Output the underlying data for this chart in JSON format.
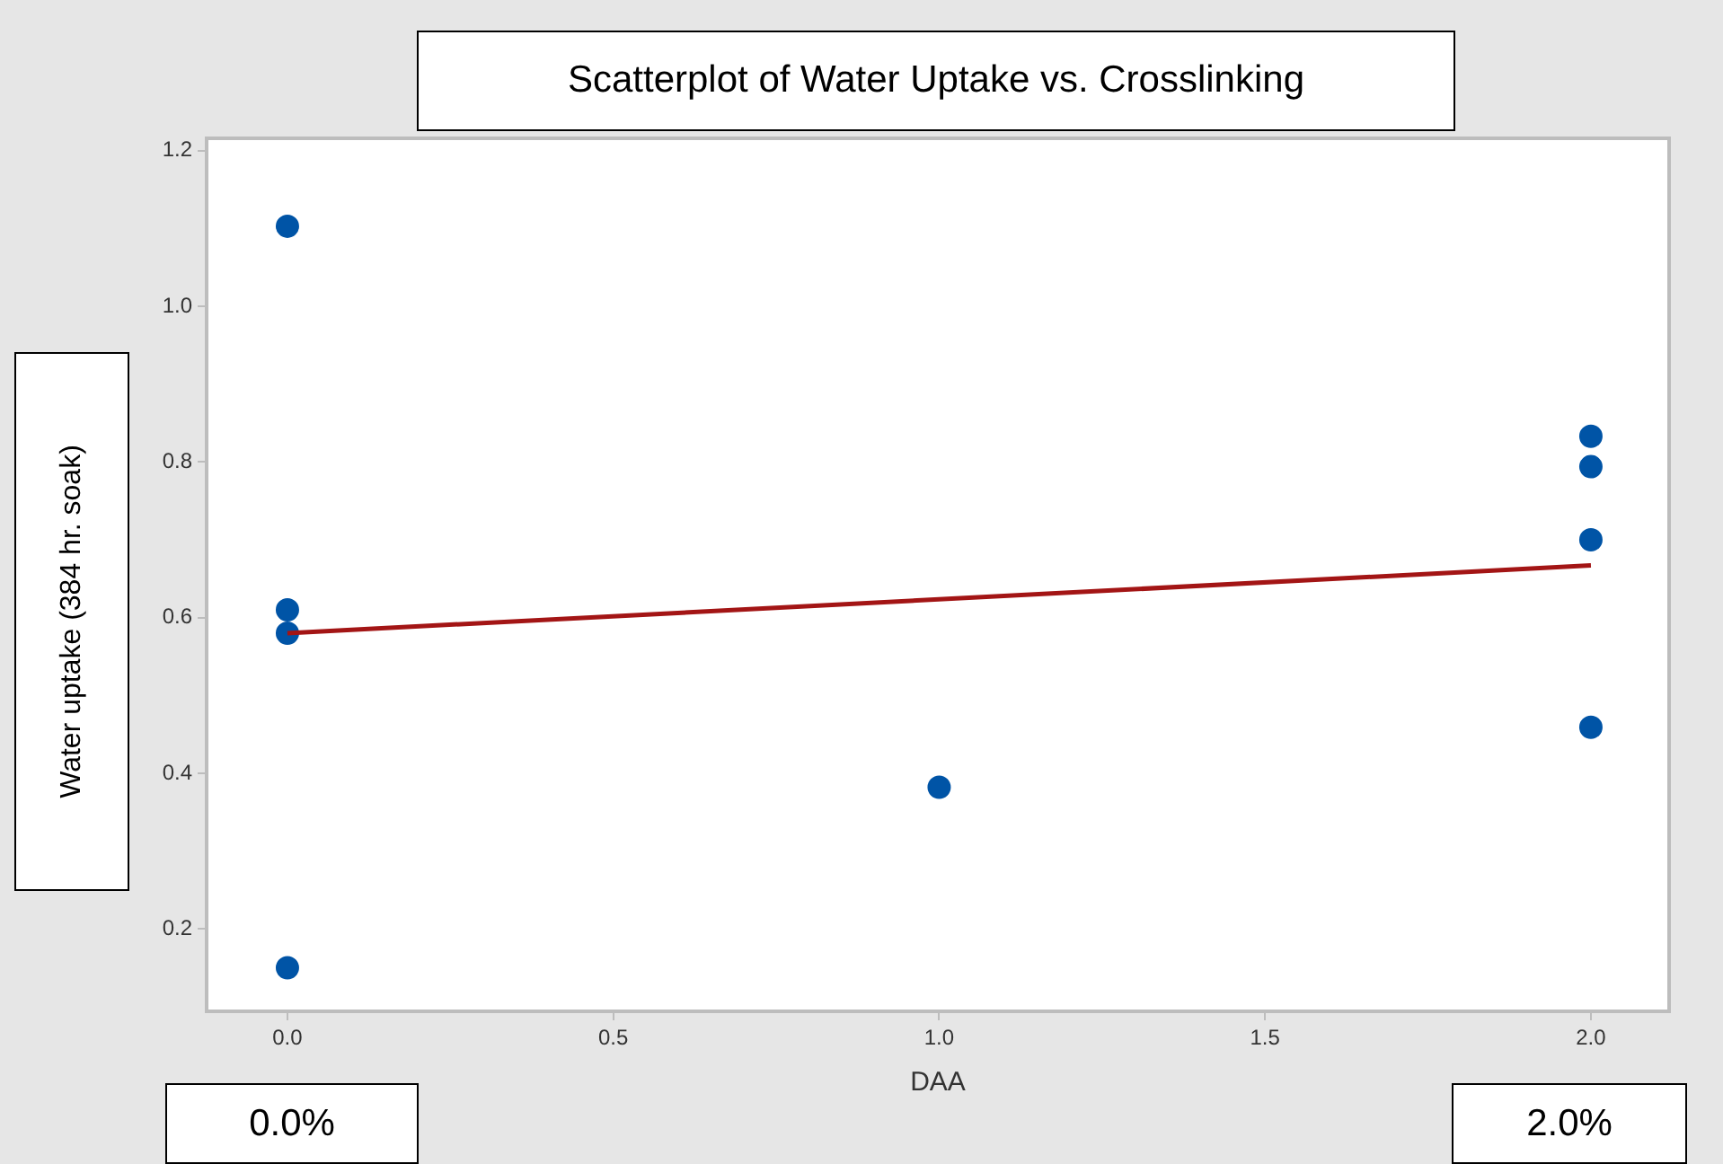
{
  "chart_data": {
    "type": "scatter",
    "title": "Scatterplot of Water Uptake vs. Crosslinking",
    "xlabel": "DAA",
    "ylabel": "Water uptake (384 hr. soak)",
    "annotations": [
      "0.0%",
      "2.0%"
    ],
    "series": [
      {
        "type": "scatter",
        "marker": "circle",
        "color": "#0054a6",
        "x": [
          0,
          0,
          0,
          0,
          1,
          2,
          2,
          2,
          2
        ],
        "values": [
          1.103,
          0.61,
          0.58,
          0.15,
          0.382,
          0.833,
          0.794,
          0.7,
          0.459
        ]
      },
      {
        "type": "line",
        "marker": "none",
        "color": "#a31515",
        "x": [
          0,
          2
        ],
        "values": [
          0.58,
          0.667
        ]
      }
    ],
    "xlim": [
      -0.124,
      2.12
    ],
    "xticks": [
      {
        "value": 0,
        "label": "0.0"
      },
      {
        "value": 0.5,
        "label": "0.5"
      },
      {
        "value": 1,
        "label": "1.0"
      },
      {
        "value": 1.5,
        "label": "1.5"
      },
      {
        "value": 2,
        "label": "2.0"
      }
    ],
    "ylim": [
      0.094,
      1.216
    ],
    "yticks": [
      {
        "value": 0.2,
        "label": "0.2"
      },
      {
        "value": 0.4,
        "label": "0.4"
      },
      {
        "value": 0.6,
        "label": "0.6"
      },
      {
        "value": 0.8,
        "label": "0.8"
      },
      {
        "value": 1,
        "label": "1.0"
      },
      {
        "value": 1.2,
        "label": "1.2"
      }
    ],
    "line_style": "solid",
    "grid": false,
    "legend": false
  }
}
